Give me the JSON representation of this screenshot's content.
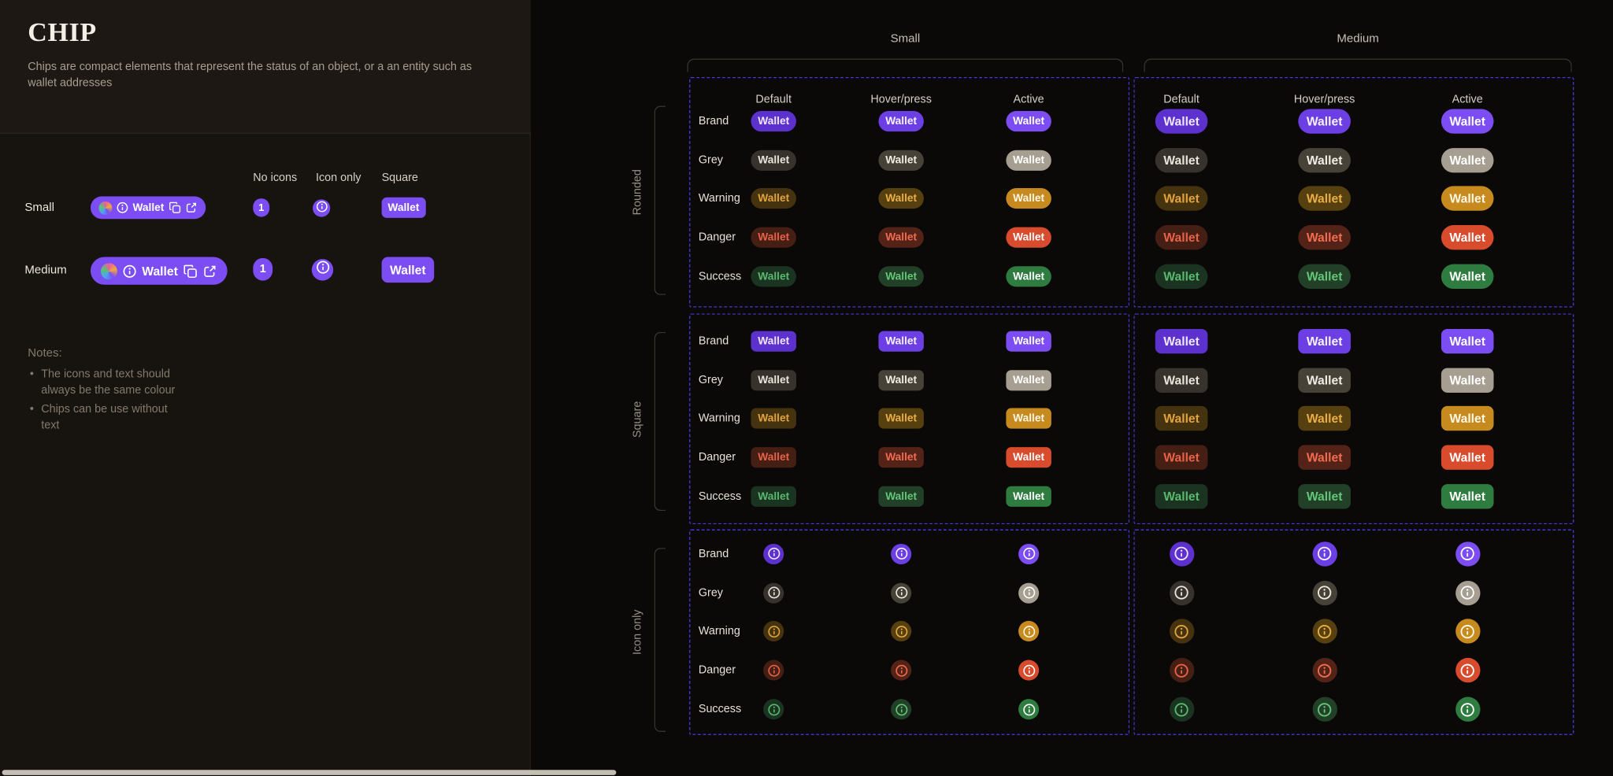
{
  "left_panel": {
    "title": "CHIP",
    "description": "Chips are compact elements that represent the status of an object, or a an entity such as wallet addresses",
    "matrix": {
      "column_headers": [
        "No icons",
        "Icon only",
        "Square"
      ],
      "rows": [
        {
          "size_label": "Small",
          "full_chip_label": "Wallet",
          "no_icon_label": "1",
          "square_chip_label": "Wallet"
        },
        {
          "size_label": "Medium",
          "full_chip_label": "Wallet",
          "no_icon_label": "1",
          "square_chip_label": "Wallet"
        }
      ]
    },
    "notes_title": "Notes:",
    "notes": [
      "The icons and text should always be the same colour",
      "Chips can be use without text"
    ]
  },
  "right_panel": {
    "size_groups": [
      "Small",
      "Medium"
    ],
    "state_headers": [
      "Default",
      "Hover/press",
      "Active"
    ],
    "shape_groups": [
      "Rounded",
      "Square",
      "Icon only"
    ],
    "variant_rows": [
      "Brand",
      "Grey",
      "Warning",
      "Danger",
      "Success"
    ],
    "chip_label": "Wallet",
    "colors": {
      "brand": {
        "default": {
          "bg": "#5D31CE",
          "fg": "#EFE6FF"
        },
        "hover": {
          "bg": "#6C3FE4",
          "fg": "#F6F1FF"
        },
        "active": {
          "bg": "#7B4DF2",
          "fg": "#FFFFFF"
        }
      },
      "grey": {
        "default": {
          "bg": "#37332C",
          "fg": "#E9E4DC"
        },
        "hover": {
          "bg": "#474238",
          "fg": "#F0EBE3"
        },
        "active": {
          "bg": "#A69E91",
          "fg": "#FFFFFF"
        }
      },
      "warning": {
        "default": {
          "bg": "#453310",
          "fg": "#E2A33C"
        },
        "hover": {
          "bg": "#564010",
          "fg": "#EBAD45"
        },
        "active": {
          "bg": "#C68A1E",
          "fg": "#FFF7E6"
        }
      },
      "danger": {
        "default": {
          "bg": "#451E14",
          "fg": "#E86248"
        },
        "hover": {
          "bg": "#542318",
          "fg": "#F26C50"
        },
        "active": {
          "bg": "#D84B2C",
          "fg": "#FFFFFF"
        }
      },
      "success": {
        "default": {
          "bg": "#1B3321",
          "fg": "#59B96D"
        },
        "hover": {
          "bg": "#224028",
          "fg": "#64C677"
        },
        "active": {
          "bg": "#2E7C3F",
          "fg": "#FFFFFF"
        }
      }
    },
    "annotation": {
      "dashed_border": "#4A3BD8",
      "bracket": "#3A352D"
    }
  },
  "icons": {
    "info": "ⓘ",
    "copy": "⧉",
    "external_link": "↗",
    "avatar": "◍"
  }
}
